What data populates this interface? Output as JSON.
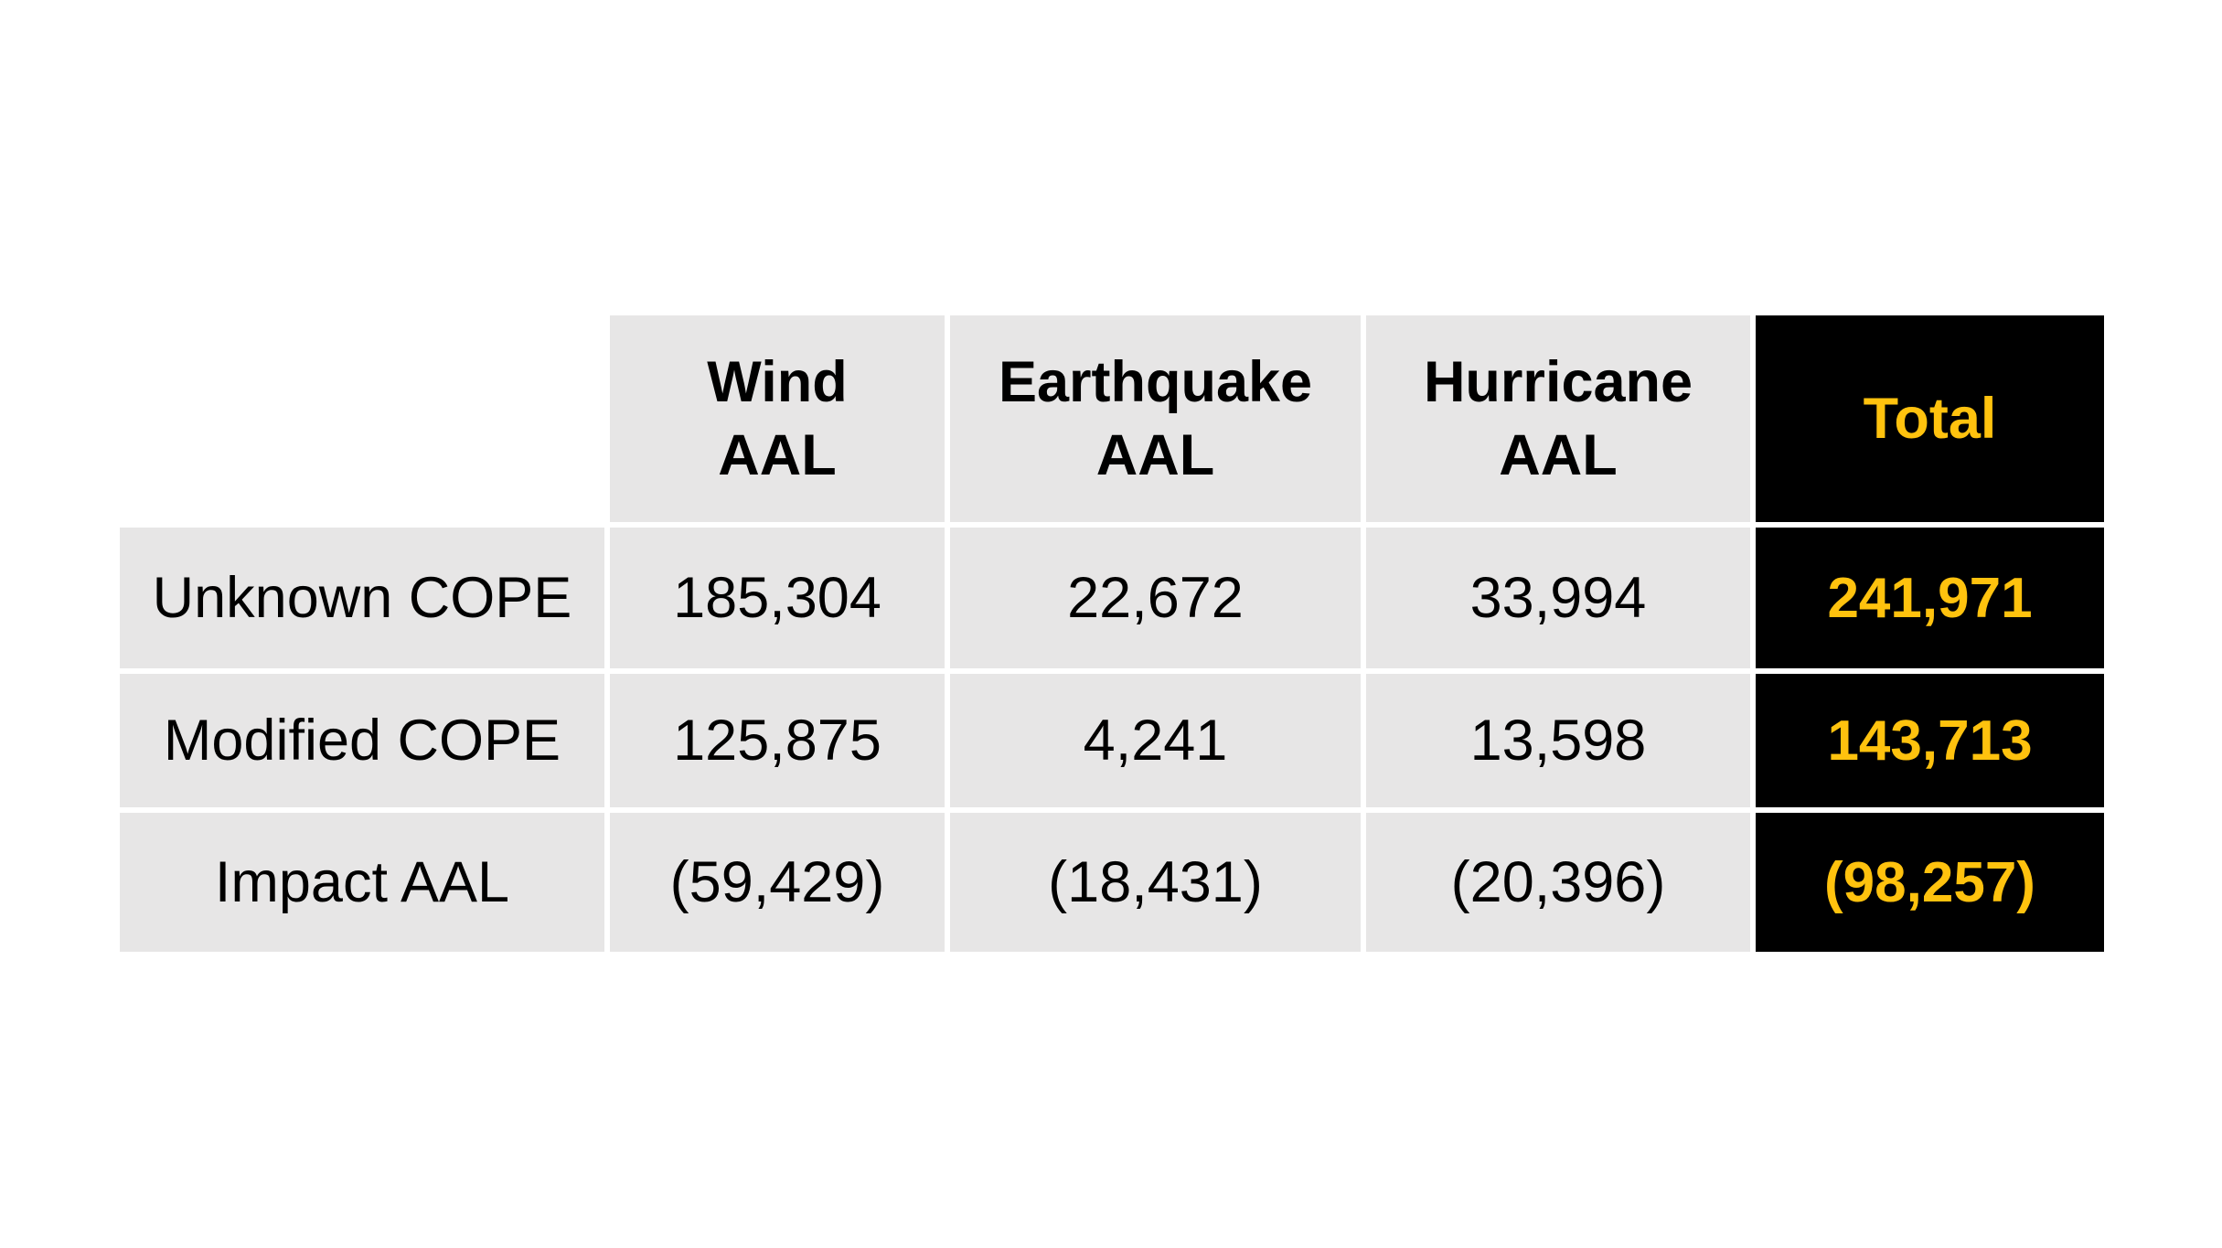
{
  "colors": {
    "page_background": "#FFFFFF",
    "cell_background": "#E7E6E6",
    "total_background": "#000000",
    "accent_yellow": "#FFC20E",
    "body_text": "#000000"
  },
  "table": {
    "corner_label": "",
    "columns": [
      {
        "id": "wind",
        "line1": "Wind",
        "line2": "AAL"
      },
      {
        "id": "earthquake",
        "line1": "Earthquake",
        "line2": "AAL"
      },
      {
        "id": "hurricane",
        "line1": "Hurricane",
        "line2": "AAL"
      },
      {
        "id": "total",
        "label": "Total"
      }
    ],
    "rows": [
      {
        "label": "Unknown COPE",
        "wind": "185,304",
        "earthquake": "22,672",
        "hurricane": "33,994",
        "total": "241,971"
      },
      {
        "label": "Modified COPE",
        "wind": "125,875",
        "earthquake": "4,241",
        "hurricane": "13,598",
        "total": "143,713"
      },
      {
        "label": "Impact AAL",
        "wind": "(59,429)",
        "earthquake": "(18,431)",
        "hurricane": "(20,396)",
        "total": "(98,257)"
      }
    ]
  },
  "chart_data": {
    "type": "table",
    "columns": [
      "",
      "Wind AAL",
      "Earthquake AAL",
      "Hurricane AAL",
      "Total"
    ],
    "rows": [
      [
        "Unknown COPE",
        "185,304",
        "22,672",
        "33,994",
        "241,971"
      ],
      [
        "Modified COPE",
        "125,875",
        "4,241",
        "13,598",
        "143,713"
      ],
      [
        "Impact AAL",
        "(59,429)",
        "(18,431)",
        "(20,396)",
        "(98,257)"
      ]
    ],
    "numeric_rows": [
      [
        "Unknown COPE",
        185304,
        22672,
        33994,
        241971
      ],
      [
        "Modified COPE",
        125875,
        4241,
        13598,
        143713
      ],
      [
        "Impact AAL",
        -59429,
        -18431,
        -20396,
        -98257
      ]
    ],
    "layout_hints": {
      "header_fill": "#E7E6E6",
      "total_column_fill": "#000000",
      "total_column_text": "#FFC20E",
      "negative_format": "parentheses"
    }
  }
}
